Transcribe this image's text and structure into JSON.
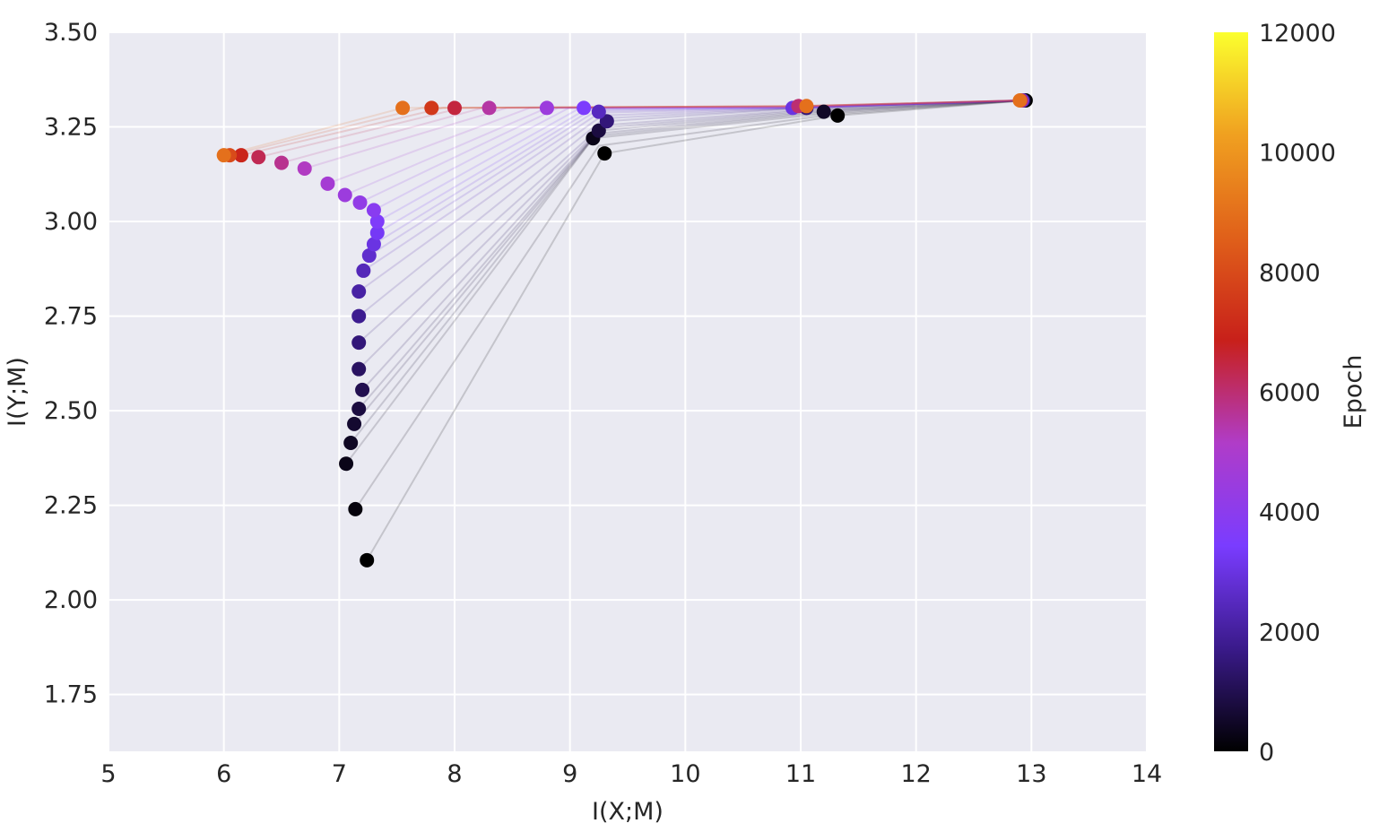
{
  "chart_data": {
    "type": "scatter",
    "title": "",
    "xlabel": "I(X;M)",
    "ylabel": "I(Y;M)",
    "xlim": [
      5,
      14
    ],
    "ylim": [
      1.6,
      3.5
    ],
    "xticks": [
      "5",
      "6",
      "7",
      "8",
      "9",
      "10",
      "11",
      "12",
      "13",
      "14"
    ],
    "yticks": [
      "1.75",
      "2.00",
      "2.25",
      "2.50",
      "2.75",
      "3.00",
      "3.25",
      "3.50"
    ],
    "grid": true,
    "colormap": "gnuplot-like (black → purple → violet → red → orange → yellow)",
    "colorbar": {
      "label": "Epoch",
      "min": 0,
      "max": 12000,
      "ticks": [
        "0",
        "2000",
        "4000",
        "6000",
        "8000",
        "10000",
        "12000"
      ],
      "stops": [
        "#000000",
        "#3a1a8a",
        "#7a3cff",
        "#b03cc8",
        "#c8201a",
        "#e0601a",
        "#f0a020",
        "#fbff2e"
      ]
    },
    "series": [
      {
        "layer": 1,
        "points": [
          {
            "epoch": 0,
            "x": 12.95,
            "y": 3.32
          },
          {
            "epoch": 1000,
            "x": 12.93,
            "y": 3.32
          },
          {
            "epoch": 3000,
            "x": 12.92,
            "y": 3.32
          },
          {
            "epoch": 6000,
            "x": 12.91,
            "y": 3.32
          },
          {
            "epoch": 9000,
            "x": 12.9,
            "y": 3.32
          }
        ]
      },
      {
        "layer": 2,
        "points": [
          {
            "epoch": 0,
            "x": 11.32,
            "y": 3.28
          },
          {
            "epoch": 500,
            "x": 11.2,
            "y": 3.29
          },
          {
            "epoch": 1500,
            "x": 11.05,
            "y": 3.3
          },
          {
            "epoch": 3000,
            "x": 10.93,
            "y": 3.3
          },
          {
            "epoch": 6000,
            "x": 10.98,
            "y": 3.305
          },
          {
            "epoch": 9000,
            "x": 11.05,
            "y": 3.305
          }
        ]
      },
      {
        "layer": 3,
        "points": [
          {
            "epoch": 0,
            "x": 9.3,
            "y": 3.18
          },
          {
            "epoch": 300,
            "x": 9.2,
            "y": 3.22
          },
          {
            "epoch": 800,
            "x": 9.25,
            "y": 3.24
          },
          {
            "epoch": 1500,
            "x": 9.32,
            "y": 3.265
          },
          {
            "epoch": 2500,
            "x": 9.25,
            "y": 3.29
          },
          {
            "epoch": 3500,
            "x": 9.12,
            "y": 3.3
          },
          {
            "epoch": 4500,
            "x": 8.8,
            "y": 3.3
          },
          {
            "epoch": 5500,
            "x": 8.3,
            "y": 3.3
          },
          {
            "epoch": 6500,
            "x": 8.0,
            "y": 3.3
          },
          {
            "epoch": 7500,
            "x": 7.8,
            "y": 3.3
          },
          {
            "epoch": 9000,
            "x": 7.55,
            "y": 3.3
          }
        ]
      },
      {
        "layer": 4,
        "points": [
          {
            "epoch": 0,
            "x": 7.24,
            "y": 2.105
          },
          {
            "epoch": 150,
            "x": 7.14,
            "y": 2.24
          },
          {
            "epoch": 300,
            "x": 7.06,
            "y": 2.36
          },
          {
            "epoch": 450,
            "x": 7.1,
            "y": 2.415
          },
          {
            "epoch": 600,
            "x": 7.13,
            "y": 2.465
          },
          {
            "epoch": 800,
            "x": 7.17,
            "y": 2.505
          },
          {
            "epoch": 1000,
            "x": 7.2,
            "y": 2.555
          },
          {
            "epoch": 1200,
            "x": 7.17,
            "y": 2.61
          },
          {
            "epoch": 1500,
            "x": 7.17,
            "y": 2.68
          },
          {
            "epoch": 1800,
            "x": 7.17,
            "y": 2.75
          },
          {
            "epoch": 2100,
            "x": 7.17,
            "y": 2.815
          },
          {
            "epoch": 2400,
            "x": 7.21,
            "y": 2.87
          },
          {
            "epoch": 2700,
            "x": 7.26,
            "y": 2.91
          },
          {
            "epoch": 3000,
            "x": 7.3,
            "y": 2.94
          },
          {
            "epoch": 3300,
            "x": 7.33,
            "y": 2.97
          },
          {
            "epoch": 3600,
            "x": 7.33,
            "y": 3.0
          },
          {
            "epoch": 3900,
            "x": 7.3,
            "y": 3.03
          },
          {
            "epoch": 4200,
            "x": 7.18,
            "y": 3.05
          },
          {
            "epoch": 4500,
            "x": 7.05,
            "y": 3.07
          },
          {
            "epoch": 4800,
            "x": 6.9,
            "y": 3.1
          },
          {
            "epoch": 5200,
            "x": 6.7,
            "y": 3.14
          },
          {
            "epoch": 5700,
            "x": 6.5,
            "y": 3.155
          },
          {
            "epoch": 6300,
            "x": 6.3,
            "y": 3.17
          },
          {
            "epoch": 7000,
            "x": 6.15,
            "y": 3.175
          },
          {
            "epoch": 8000,
            "x": 6.05,
            "y": 3.175
          },
          {
            "epoch": 9000,
            "x": 6.0,
            "y": 3.175
          }
        ]
      }
    ]
  }
}
